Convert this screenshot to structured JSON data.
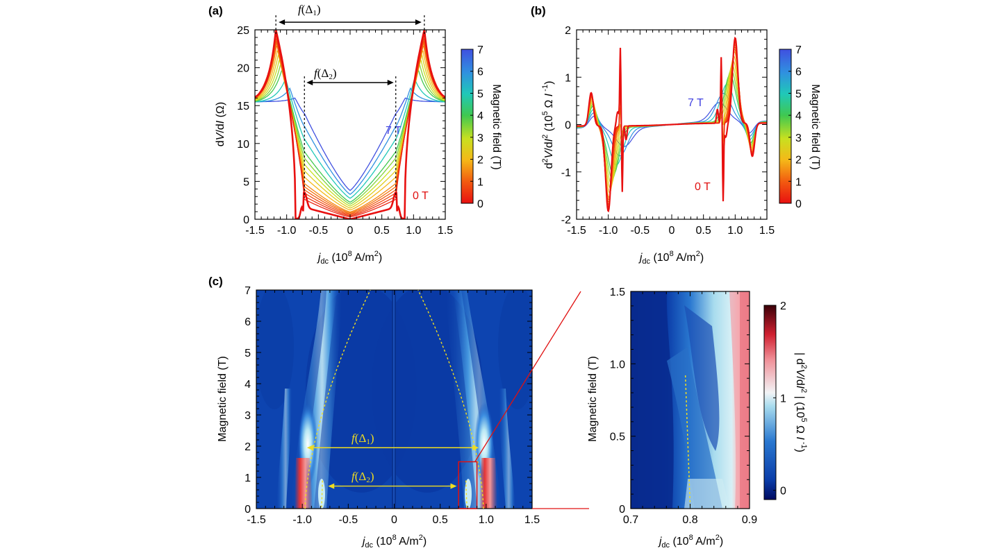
{
  "colors": {
    "zero_field": "#e01010",
    "seven_tesla": "#4040e0",
    "guide_line": "#f0dd20",
    "zoom_box": "#e01010",
    "map_background": "#0a3ca8"
  },
  "chart_data": [
    {
      "id": "a",
      "panel_label": "(a)",
      "type": "line",
      "ylabel": "dV/dI (Ω)",
      "xlabel_main": "j",
      "xlabel_sub": "dc",
      "xlabel_units": "(10",
      "xlabel_exp": "8",
      "xlabel_units2": "A/m",
      "xlabel_exp2": "2",
      "xlabel_close": ")",
      "xlim": [
        -1.5,
        1.5
      ],
      "ylim": [
        0,
        25
      ],
      "x_ticks": [
        "-1.5",
        "-1.0",
        "-0.5",
        "0",
        "0.5",
        "1.0",
        "1.5"
      ],
      "y_ticks": [
        "0",
        "5",
        "10",
        "15",
        "20",
        "25"
      ],
      "series_field_T": [
        0,
        0.25,
        0.5,
        0.75,
        1.0,
        1.25,
        1.5,
        2,
        2.5,
        3,
        3.5,
        4,
        5,
        6,
        7
      ],
      "label_0T": "0 T",
      "label_7T": "7 T",
      "annotation_delta1": "f(Δ1)",
      "annotation_delta2": "f(Δ2)",
      "delta1_x": [
        -1.17,
        1.17
      ],
      "delta2_x": [
        -0.72,
        0.72
      ],
      "peak_value_0T": 25,
      "colorbar": {
        "label": "Magnetic field (T)",
        "range": [
          0,
          7
        ],
        "ticks": [
          "0",
          "1",
          "2",
          "3",
          "4",
          "5",
          "6",
          "7"
        ]
      }
    },
    {
      "id": "b",
      "panel_label": "(b)",
      "type": "line",
      "ylabel": "d2V/dI2 (105 Ω I-1)",
      "xlabel_main": "j",
      "xlabel_sub": "dc",
      "xlabel_units": "(10",
      "xlabel_exp": "8",
      "xlabel_units2": "A/m",
      "xlabel_exp2": "2",
      "xlabel_close": ")",
      "xlim": [
        -1.5,
        1.5
      ],
      "ylim": [
        -2,
        2
      ],
      "x_ticks": [
        "-1.5",
        "-1.0",
        "-0.5",
        "0",
        "0.5",
        "1.0",
        "1.5"
      ],
      "y_ticks": [
        "-2",
        "-1",
        "0",
        "1",
        "2"
      ],
      "label_0T": "0 T",
      "label_7T": "7 T",
      "colorbar": {
        "label": "Magnetic field (T)",
        "range": [
          0,
          7
        ],
        "ticks": [
          "0",
          "1",
          "2",
          "3",
          "4",
          "5",
          "6",
          "7"
        ]
      }
    },
    {
      "id": "c",
      "panel_label": "(c)",
      "type": "heatmap",
      "ylabel": "Magnetic field (T)",
      "xlabel_main": "j",
      "xlabel_sub": "dc",
      "xlabel_units": "(10",
      "xlabel_exp": "8",
      "xlabel_units2": "A/m",
      "xlabel_exp2": "2",
      "xlabel_close": ")",
      "xlim": [
        -1.5,
        1.5
      ],
      "ylim": [
        0,
        7
      ],
      "x_ticks": [
        "-1.5",
        "-1.0",
        "-0.5",
        "0",
        "0.5",
        "1.0",
        "1.5"
      ],
      "y_ticks": [
        "0",
        "1",
        "2",
        "3",
        "4",
        "5",
        "6",
        "7"
      ],
      "annotation_delta1": "f(Δ1)",
      "annotation_delta2": "f(Δ2)",
      "arrow_delta1": {
        "x": [
          -0.95,
          0.92
        ],
        "y": 1.95
      },
      "arrow_delta2": {
        "x": [
          -0.72,
          0.68
        ],
        "y": 0.72
      },
      "zoom_box": {
        "x": [
          0.7,
          0.9
        ],
        "y": [
          0,
          1.5
        ]
      }
    },
    {
      "id": "c-zoom",
      "type": "heatmap",
      "ylabel": "Magnetic field (T)",
      "xlabel_main": "j",
      "xlabel_sub": "dc",
      "xlabel_units": "(10",
      "xlabel_exp": "8",
      "xlabel_units2": "A/m",
      "xlabel_exp2": "2",
      "xlabel_close": ")",
      "xlim": [
        0.7,
        0.9
      ],
      "ylim": [
        0,
        1.5
      ],
      "x_ticks": [
        "0.7",
        "0.8",
        "0.9"
      ],
      "y_ticks": [
        "0",
        "0.5",
        "1.0",
        "1.5"
      ],
      "colorbar": {
        "label": "| d2V/dI2 | (105 Ω I-1)",
        "range": [
          -0.1,
          2
        ],
        "ticks": [
          "0",
          "1",
          "2"
        ]
      }
    }
  ]
}
